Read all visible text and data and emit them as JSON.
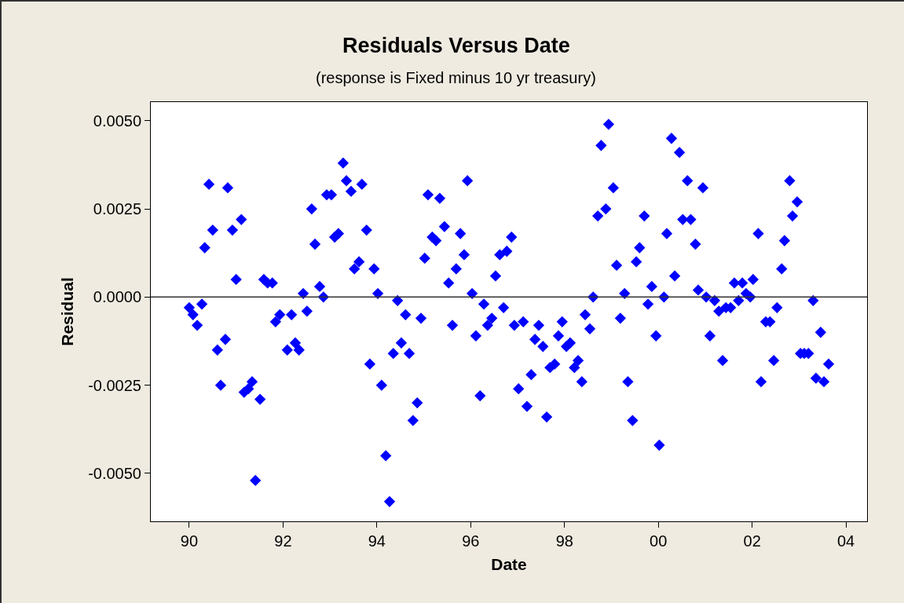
{
  "chart_data": {
    "type": "scatter",
    "title": "Residuals Versus Date",
    "subtitle": "(response is Fixed minus 10 yr treasury)",
    "xlabel": "Date",
    "ylabel": "Residual",
    "x": [
      1990.0,
      1990.08,
      1990.17,
      1990.27,
      1990.33,
      1990.42,
      1990.5,
      1990.6,
      1990.67,
      1990.77,
      1990.82,
      1990.92,
      1991.0,
      1991.11,
      1991.17,
      1991.26,
      1991.34,
      1991.41,
      1991.51,
      1991.59,
      1991.67,
      1991.77,
      1991.84,
      1991.93,
      1992.09,
      1992.18,
      1992.26,
      1992.34,
      1992.43,
      1992.51,
      1992.61,
      1992.68,
      1992.78,
      1992.86,
      1992.93,
      1993.03,
      1993.1,
      1993.18,
      1993.28,
      1993.35,
      1993.45,
      1993.52,
      1993.62,
      1993.68,
      1993.78,
      1993.85,
      1993.94,
      1994.02,
      1994.1,
      1994.19,
      1994.27,
      1994.35,
      1994.44,
      1994.52,
      1994.61,
      1994.69,
      1994.77,
      1994.86,
      1994.94,
      1995.02,
      1995.09,
      1995.18,
      1995.26,
      1995.34,
      1995.44,
      1995.53,
      1995.61,
      1995.69,
      1995.78,
      1995.86,
      1995.93,
      1996.03,
      1996.11,
      1996.2,
      1996.28,
      1996.36,
      1996.45,
      1996.53,
      1996.62,
      1996.7,
      1996.77,
      1996.87,
      1996.93,
      1997.02,
      1997.12,
      1997.2,
      1997.29,
      1997.37,
      1997.45,
      1997.54,
      1997.62,
      1997.69,
      1997.79,
      1997.87,
      1997.95,
      1998.04,
      1998.12,
      1998.21,
      1998.29,
      1998.37,
      1998.44,
      1998.54,
      1998.61,
      1998.71,
      1998.78,
      1998.88,
      1998.94,
      1999.04,
      1999.11,
      1999.19,
      1999.28,
      1999.35,
      1999.45,
      1999.53,
      1999.6,
      1999.7,
      1999.78,
      1999.86,
      1999.95,
      2000.02,
      2000.12,
      2000.18,
      2000.28,
      2000.35,
      2000.45,
      2000.52,
      2000.62,
      2000.69,
      2000.79,
      2000.85,
      2000.95,
      2001.02,
      2001.1,
      2001.2,
      2001.29,
      2001.37,
      2001.44,
      2001.54,
      2001.62,
      2001.71,
      2001.79,
      2001.87,
      2001.96,
      2002.02,
      2002.13,
      2002.19,
      2002.29,
      2002.38,
      2002.46,
      2002.53,
      2002.63,
      2002.69,
      2002.8,
      2002.86,
      2002.96,
      2003.03,
      2003.11,
      2003.2,
      2003.3,
      2003.36,
      2003.46,
      2003.53,
      2003.63
    ],
    "series": [
      {
        "color": "#0000ff",
        "values": [
          -0.0003,
          -0.0005,
          -0.0008,
          -0.0002,
          0.0014,
          0.0032,
          0.0019,
          -0.0015,
          -0.0025,
          -0.0012,
          0.0031,
          0.0019,
          0.0005,
          0.0022,
          -0.0027,
          -0.0026,
          -0.0024,
          -0.0052,
          -0.0029,
          0.0005,
          0.0004,
          0.0004,
          -0.0007,
          -0.0005,
          -0.0015,
          -0.0005,
          -0.0013,
          -0.0015,
          0.0001,
          -0.0004,
          0.0025,
          0.0015,
          0.0003,
          0.0,
          0.0029,
          0.0029,
          0.0017,
          0.0018,
          0.0038,
          0.0033,
          0.003,
          0.0008,
          0.001,
          0.0032,
          0.0019,
          -0.0019,
          0.0008,
          0.0001,
          -0.0025,
          -0.0045,
          -0.0058,
          -0.0016,
          -0.0001,
          -0.0013,
          -0.0005,
          -0.0016,
          -0.0035,
          -0.003,
          -0.0006,
          0.0011,
          0.0029,
          0.0017,
          0.0016,
          0.0028,
          0.002,
          0.0004,
          -0.0008,
          0.0008,
          0.0018,
          0.0012,
          0.0033,
          0.0001,
          -0.0011,
          -0.0028,
          -0.0002,
          -0.0008,
          -0.0006,
          0.0006,
          0.0012,
          -0.0003,
          0.0013,
          0.0017,
          -0.0008,
          -0.0026,
          -0.0007,
          -0.0031,
          -0.0022,
          -0.0012,
          -0.0008,
          -0.0014,
          -0.0034,
          -0.002,
          -0.0019,
          -0.0011,
          -0.0007,
          -0.0014,
          -0.0013,
          -0.002,
          -0.0018,
          -0.0024,
          -0.0005,
          -0.0009,
          0.0,
          0.0023,
          0.0043,
          0.0025,
          0.0049,
          0.0031,
          0.0009,
          -0.0006,
          0.0001,
          -0.0024,
          -0.0035,
          0.001,
          0.0014,
          0.0023,
          -0.0002,
          0.0003,
          -0.0011,
          -0.0042,
          0.0,
          0.0018,
          0.0045,
          0.0006,
          0.0041,
          0.0022,
          0.0033,
          0.0022,
          0.0015,
          0.0002,
          0.0031,
          0.0,
          -0.0011,
          -0.0001,
          -0.0004,
          -0.0018,
          -0.0003,
          -0.0003,
          0.0004,
          -0.0001,
          0.0004,
          0.0001,
          0.0,
          0.0005,
          0.0018,
          -0.0024,
          -0.0007,
          -0.0007,
          -0.0018,
          -0.0003,
          0.0008,
          0.0016,
          0.0033,
          0.0023,
          0.0027,
          -0.0016,
          -0.0016,
          -0.0016,
          -0.0001,
          -0.0023,
          -0.001,
          -0.0024,
          -0.0019
        ]
      }
    ],
    "xlim": [
      1989.18,
      2004.45
    ],
    "xticks": [
      {
        "value": 1990,
        "label": "90"
      },
      {
        "value": 1992,
        "label": "92"
      },
      {
        "value": 1994,
        "label": "94"
      },
      {
        "value": 1996,
        "label": "96"
      },
      {
        "value": 1998,
        "label": "98"
      },
      {
        "value": 2000,
        "label": "00"
      },
      {
        "value": 2002,
        "label": "02"
      },
      {
        "value": 2004,
        "label": "04"
      }
    ],
    "ylim": [
      -0.00636,
      0.00553
    ],
    "yticks": [
      {
        "value": -0.005,
        "label": "-0.0050"
      },
      {
        "value": -0.0025,
        "label": "-0.0025"
      },
      {
        "value": 0,
        "label": "0.0000"
      },
      {
        "value": 0.0025,
        "label": "0.0025"
      },
      {
        "value": 0.005,
        "label": "0.0050"
      }
    ],
    "ref_lines": [
      {
        "axis": "y",
        "value": 0,
        "color": "#333333"
      }
    ],
    "marker": "diamond",
    "grid": false
  }
}
